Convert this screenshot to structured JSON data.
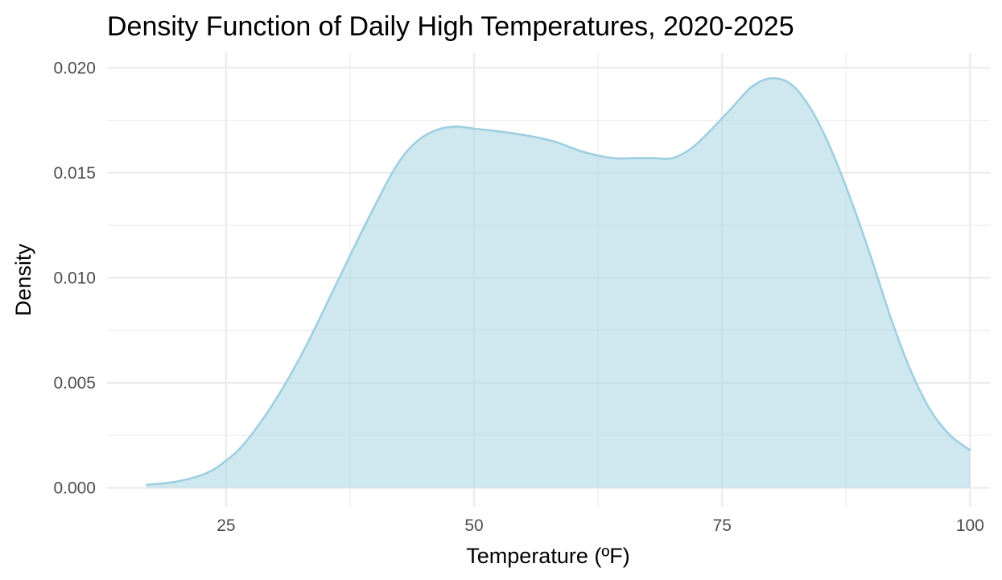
{
  "chart_data": {
    "type": "area",
    "title": "Density Function of Daily High Temperatures, 2020-2025",
    "xlabel": "Temperature (ºF)",
    "ylabel": "Density",
    "xlim": [
      13,
      102
    ],
    "ylim": [
      -0.0009,
      0.0207
    ],
    "x_ticks": [
      25,
      50,
      75,
      100
    ],
    "x_tick_labels": [
      "25",
      "50",
      "75",
      "100"
    ],
    "y_ticks": [
      0,
      0.005,
      0.01,
      0.015,
      0.02
    ],
    "y_tick_labels": [
      "0.000",
      "0.005",
      "0.010",
      "0.015",
      "0.020"
    ],
    "grid": true,
    "legend": "none",
    "fill_color": "#add8e6",
    "line_color": "#9ecfe0",
    "series": [
      {
        "x": [
          17,
          20,
          23,
          25,
          27,
          30,
          33,
          36,
          39,
          42,
          44,
          46,
          48,
          50,
          52,
          55,
          58,
          61,
          64,
          66,
          68,
          70,
          72,
          74,
          76,
          78,
          80,
          82,
          84,
          86,
          88,
          90,
          92,
          94,
          96,
          98,
          100
        ],
        "values": [
          0.00015,
          0.0003,
          0.0007,
          0.0013,
          0.0022,
          0.0042,
          0.0067,
          0.0096,
          0.0125,
          0.0152,
          0.0164,
          0.017,
          0.0172,
          0.0171,
          0.017,
          0.0168,
          0.0165,
          0.016,
          0.0157,
          0.0157,
          0.0157,
          0.0157,
          0.0162,
          0.0171,
          0.0181,
          0.0191,
          0.0195,
          0.0192,
          0.018,
          0.0161,
          0.0137,
          0.011,
          0.0081,
          0.0056,
          0.0037,
          0.0025,
          0.0018
        ]
      }
    ]
  }
}
